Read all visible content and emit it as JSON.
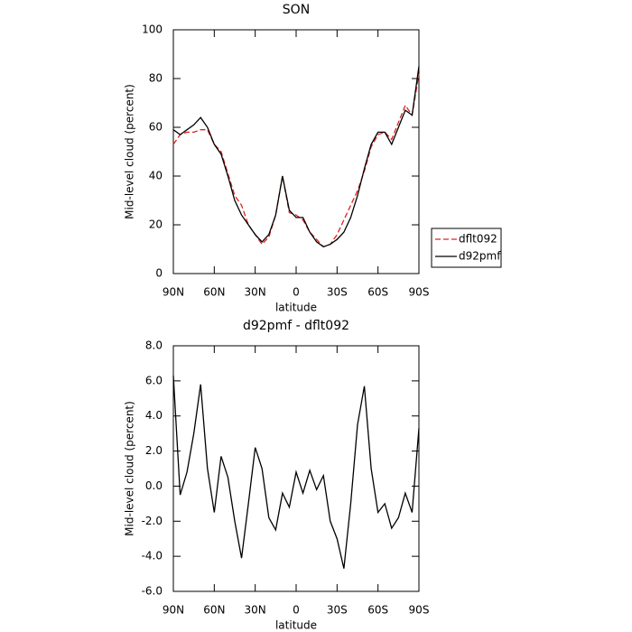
{
  "chart_data": [
    {
      "type": "line",
      "title": "SON",
      "xlabel": "latitude",
      "ylabel": "Mid-level cloud (percent)",
      "x": [
        90,
        85,
        80,
        75,
        70,
        65,
        60,
        55,
        50,
        45,
        40,
        35,
        30,
        25,
        20,
        15,
        10,
        5,
        0,
        -5,
        -10,
        -15,
        -20,
        -25,
        -30,
        -35,
        -40,
        -45,
        -50,
        -55,
        -60,
        -65,
        -70,
        -75,
        -80,
        -85,
        -90
      ],
      "series": [
        {
          "name": "dflt092",
          "color": "#e02020",
          "dash": true,
          "values": [
            53,
            57,
            58,
            58,
            59,
            59,
            53,
            50,
            41,
            32,
            28,
            20,
            16,
            12,
            15,
            24,
            40,
            25,
            24,
            22,
            17,
            14,
            11,
            12,
            16,
            22,
            28,
            34,
            42,
            52,
            57,
            58,
            55,
            62,
            69,
            65,
            82
          ]
        },
        {
          "name": "d92pmf",
          "color": "#000000",
          "dash": false,
          "values": [
            59,
            57,
            59,
            61,
            64,
            60,
            53,
            49,
            40,
            30,
            24,
            20,
            16,
            13,
            16,
            24,
            40,
            26,
            23,
            23,
            17,
            13,
            11,
            12,
            14,
            17,
            23,
            32,
            43,
            53,
            58,
            58,
            53,
            60,
            67,
            65,
            85
          ]
        }
      ],
      "xlim": [
        90,
        -90
      ],
      "xticks": [
        {
          "value": 90,
          "label": "90N"
        },
        {
          "value": 60,
          "label": "60N"
        },
        {
          "value": 30,
          "label": "30N"
        },
        0,
        {
          "value": -30,
          "label": "30S"
        },
        {
          "value": -60,
          "label": "60S"
        },
        {
          "value": -90,
          "label": "90S"
        }
      ],
      "ylim": [
        0,
        100
      ],
      "yticks": [
        0,
        20,
        40,
        60,
        80,
        100
      ],
      "legend": "outside-right"
    },
    {
      "type": "line",
      "title": "d92pmf - dflt092",
      "xlabel": "latitude",
      "ylabel": "Mid-level cloud (percent)",
      "x": [
        90,
        85,
        80,
        75,
        70,
        65,
        60,
        55,
        50,
        45,
        40,
        35,
        30,
        25,
        20,
        15,
        10,
        5,
        0,
        -5,
        -10,
        -15,
        -20,
        -25,
        -30,
        -35,
        -40,
        -45,
        -50,
        -55,
        -60,
        -65,
        -70,
        -75,
        -80,
        -85,
        -90
      ],
      "series": [
        {
          "color": "#000000",
          "dash": false,
          "values": [
            6.3,
            -0.5,
            0.8,
            3.0,
            5.8,
            1.0,
            -1.5,
            1.7,
            0.5,
            -2.0,
            -4.1,
            -1.0,
            2.2,
            1.0,
            -1.8,
            -2.5,
            -0.4,
            -1.2,
            0.8,
            -0.4,
            0.9,
            -0.2,
            0.6,
            -2.0,
            -3.0,
            -4.7,
            -1.0,
            3.5,
            5.7,
            1.0,
            -1.5,
            -1.0,
            -2.4,
            -1.8,
            -0.4,
            -1.5,
            3.3
          ]
        }
      ],
      "xlim": [
        90,
        -90
      ],
      "xticks": [
        {
          "value": 90,
          "label": "90N"
        },
        {
          "value": 60,
          "label": "60N"
        },
        {
          "value": 30,
          "label": "30N"
        },
        0,
        {
          "value": -30,
          "label": "30S"
        },
        {
          "value": -60,
          "label": "60S"
        },
        {
          "value": -90,
          "label": "90S"
        }
      ],
      "ylim": [
        -6,
        8
      ],
      "yticks": [
        {
          "value": -6,
          "label": "-6.0"
        },
        {
          "value": -4,
          "label": "-4.0"
        },
        {
          "value": -2,
          "label": "-2.0"
        },
        {
          "value": 0,
          "label": "0.0"
        },
        {
          "value": 2,
          "label": "2.0"
        },
        {
          "value": 4,
          "label": "4.0"
        },
        {
          "value": 6,
          "label": "6.0"
        },
        {
          "value": 8,
          "label": "8.0"
        }
      ]
    }
  ]
}
